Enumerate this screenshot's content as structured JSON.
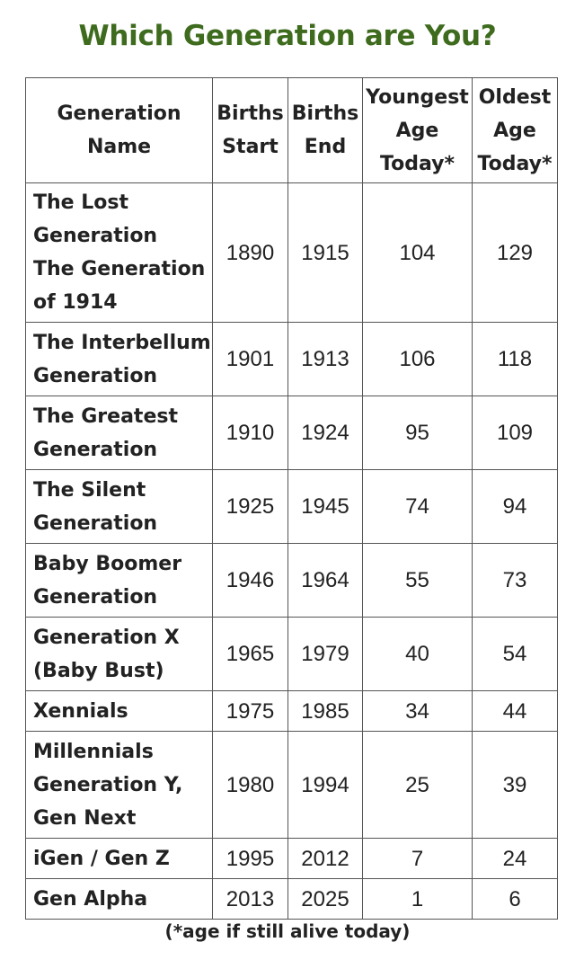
{
  "title": "Which Generation are You?",
  "header": {
    "name": [
      "Generation",
      "Name"
    ],
    "start": [
      "Births",
      "Start"
    ],
    "end": [
      "Births",
      "End"
    ],
    "youngest": [
      "Youngest",
      "Age",
      "Today*"
    ],
    "oldest": [
      "Oldest",
      "Age",
      "Today*"
    ]
  },
  "rows": [
    {
      "name": [
        "The Lost",
        "Generation",
        "The Generation",
        "of 1914"
      ],
      "start": "1890",
      "end": "1915",
      "youngest": "104",
      "oldest": "129"
    },
    {
      "name": [
        "The Interbellum",
        "Generation"
      ],
      "start": "1901",
      "end": "1913",
      "youngest": "106",
      "oldest": "118"
    },
    {
      "name": [
        "The Greatest",
        "Generation"
      ],
      "start": "1910",
      "end": "1924",
      "youngest": "95",
      "oldest": "109"
    },
    {
      "name": [
        "The Silent",
        "Generation"
      ],
      "start": "1925",
      "end": "1945",
      "youngest": "74",
      "oldest": "94"
    },
    {
      "name": [
        "Baby Boomer",
        "Generation"
      ],
      "start": "1946",
      "end": "1964",
      "youngest": "55",
      "oldest": "73"
    },
    {
      "name": [
        "Generation X",
        "(Baby Bust)"
      ],
      "start": "1965",
      "end": "1979",
      "youngest": "40",
      "oldest": "54"
    },
    {
      "name": [
        "Xennials"
      ],
      "start": "1975",
      "end": "1985",
      "youngest": "34",
      "oldest": "44"
    },
    {
      "name": [
        "Millennials",
        "Generation Y,",
        "Gen Next"
      ],
      "start": "1980",
      "end": "1994",
      "youngest": "25",
      "oldest": "39"
    },
    {
      "name": [
        "iGen / Gen Z"
      ],
      "start": "1995",
      "end": "2012",
      "youngest": "7",
      "oldest": "24"
    },
    {
      "name": [
        "Gen Alpha"
      ],
      "start": "2013",
      "end": "2025",
      "youngest": "1",
      "oldest": "6"
    }
  ],
  "footnote": "(*age if still alive today)"
}
